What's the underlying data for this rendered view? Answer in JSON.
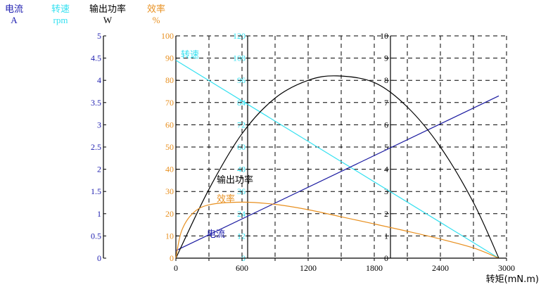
{
  "chart_data": {
    "type": "line",
    "title": "",
    "xlabel": "转矩(mN.m)",
    "xlim": [
      0,
      3000
    ],
    "xticks": [
      0,
      600,
      1200,
      1800,
      2400,
      3000
    ],
    "grid": true,
    "axes": [
      {
        "id": "current",
        "name": "电流",
        "unit": "A",
        "color": "#2020b0",
        "range": [
          0,
          5
        ],
        "ticks": [
          "0",
          "0.5",
          "1",
          "1.5",
          "2",
          "2.5",
          "3",
          "3.5",
          "4",
          "4.5",
          "5"
        ]
      },
      {
        "id": "speed",
        "name": "转速",
        "unit": "rpm",
        "color": "#33e0f0",
        "range": [
          0,
          120
        ],
        "ticks": [
          "0",
          "12",
          "24",
          "36",
          "48",
          "60",
          "72",
          "84",
          "96",
          "108",
          "120"
        ]
      },
      {
        "id": "power",
        "name": "输出功率",
        "unit": "W",
        "color": "#000000",
        "range": [
          0,
          10
        ],
        "ticks": [
          "0",
          "1",
          "2",
          "3",
          "4",
          "5",
          "6",
          "7",
          "8",
          "9",
          "10"
        ]
      },
      {
        "id": "efficiency",
        "name": "效率",
        "unit": "%",
        "color": "#e89020",
        "range": [
          0,
          100
        ],
        "ticks": [
          "0",
          "10",
          "20",
          "30",
          "40",
          "50",
          "60",
          "70",
          "80",
          "90",
          "100"
        ]
      }
    ],
    "series": [
      {
        "name": "转速",
        "axis": "speed",
        "color": "#33e0f0",
        "x": [
          0,
          2930
        ],
        "values": [
          106.8,
          0
        ]
      },
      {
        "name": "电流",
        "axis": "current",
        "color": "#1a1aa0",
        "x": [
          0,
          2930
        ],
        "values": [
          0.17,
          3.65
        ]
      },
      {
        "name": "输出功率",
        "axis": "power",
        "color": "#000000",
        "x": [
          0,
          300,
          600,
          900,
          1200,
          1465,
          1800,
          2100,
          2400,
          2700,
          2930
        ],
        "values": [
          0,
          3.1,
          5.6,
          7.2,
          8.0,
          8.2,
          7.9,
          6.8,
          5.0,
          2.5,
          0
        ]
      },
      {
        "name": "效率",
        "axis": "efficiency",
        "color": "#e89020",
        "x": [
          0,
          50,
          150,
          300,
          600,
          900,
          1200,
          1500,
          1800,
          2100,
          2400,
          2700,
          2930
        ],
        "values": [
          0,
          12,
          20,
          24,
          25.2,
          24.2,
          21.8,
          18.6,
          15.4,
          12.1,
          8.6,
          4.6,
          0
        ]
      }
    ],
    "annotations": [
      {
        "text": "转速",
        "color": "#33e0f0"
      },
      {
        "text": "输出功率",
        "color": "#000000"
      },
      {
        "text": "效率",
        "color": "#e89020"
      },
      {
        "text": "电流",
        "color": "#2020b0"
      }
    ]
  }
}
